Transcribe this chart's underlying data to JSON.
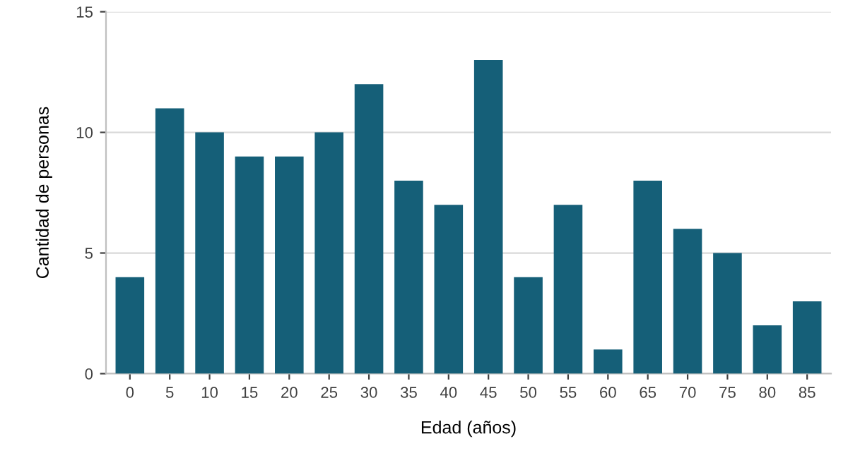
{
  "chart_data": {
    "type": "bar",
    "xlabel": "Edad (años)",
    "ylabel": "Cantidad de personas",
    "categories": [
      "0",
      "5",
      "10",
      "15",
      "20",
      "25",
      "30",
      "35",
      "40",
      "45",
      "50",
      "55",
      "60",
      "65",
      "70",
      "75",
      "80",
      "85"
    ],
    "values": [
      4,
      11,
      10,
      9,
      9,
      10,
      12,
      8,
      7,
      13,
      4,
      7,
      1,
      8,
      6,
      5,
      2,
      3
    ],
    "color": "#155f78",
    "ylim": [
      0,
      15
    ],
    "yticks": [
      0,
      5,
      10,
      15
    ],
    "grid": "y"
  }
}
